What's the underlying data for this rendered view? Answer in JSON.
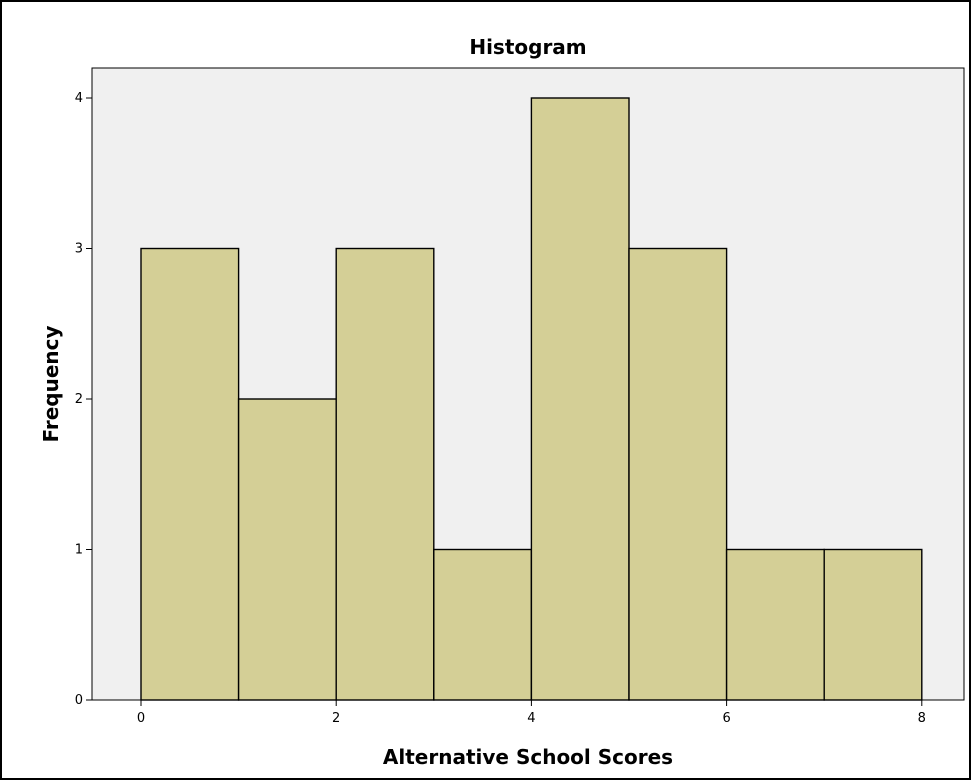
{
  "chart_data": {
    "type": "bar",
    "title": "Histogram",
    "xlabel": "Alternative School Scores",
    "ylabel": "Frequency",
    "bins": [
      {
        "start": 0,
        "end": 1,
        "count": 3
      },
      {
        "start": 1,
        "end": 2,
        "count": 2
      },
      {
        "start": 2,
        "end": 3,
        "count": 3
      },
      {
        "start": 3,
        "end": 4,
        "count": 1
      },
      {
        "start": 4,
        "end": 5,
        "count": 4
      },
      {
        "start": 5,
        "end": 6,
        "count": 3
      },
      {
        "start": 6,
        "end": 7,
        "count": 1
      },
      {
        "start": 7,
        "end": 8,
        "count": 1
      }
    ],
    "xlim": [
      -0.5,
      8.5
    ],
    "ylim": [
      0,
      4.2
    ],
    "xticks": [
      0,
      2,
      4,
      6,
      8
    ],
    "yticks": [
      0,
      1,
      2,
      3,
      4
    ],
    "grid": false,
    "colors": {
      "bar_fill": "#d4cf96",
      "bar_stroke": "#000000",
      "plot_background": "#f0f0f0"
    }
  }
}
